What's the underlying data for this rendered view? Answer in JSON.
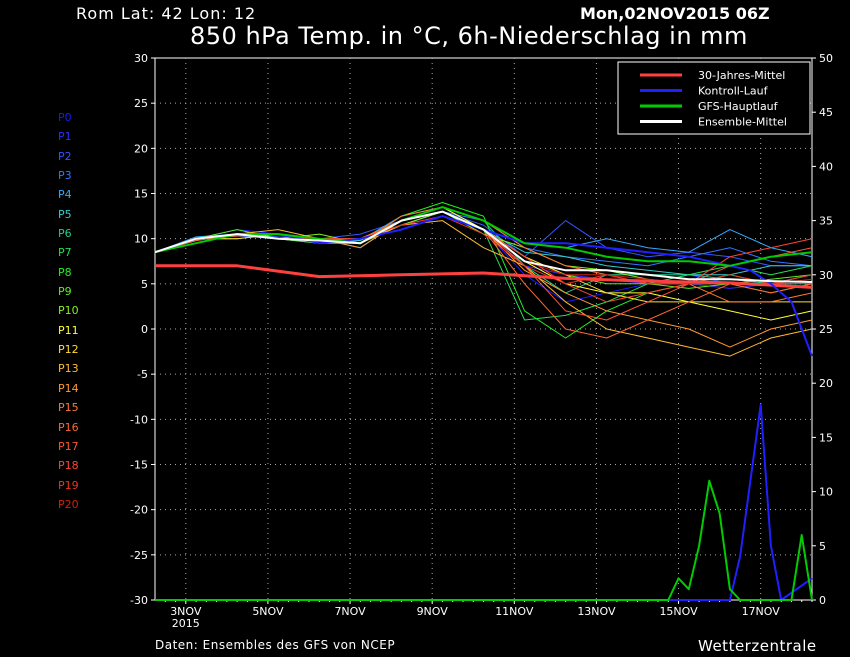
{
  "header": {
    "location": "Rom   Lat: 42 Lon: 12",
    "datetime": "Mon,02NOV2015 06Z",
    "title": "850 hPa Temp. in °C, 6h-Niederschlag in mm"
  },
  "footer": {
    "source": "Daten: Ensembles des GFS von NCEP",
    "brand": "Wetterzentrale"
  },
  "colors": {
    "background": "#000000",
    "climate": "#ff4040",
    "control": "#2020ff",
    "main": "#00cc00",
    "ensemble_mean": "#ffffff"
  },
  "members": [
    {
      "label": "P0",
      "color": "#1a1aff"
    },
    {
      "label": "P1",
      "color": "#2e2eff"
    },
    {
      "label": "P2",
      "color": "#3355ff"
    },
    {
      "label": "P3",
      "color": "#3377ff"
    },
    {
      "label": "P4",
      "color": "#33aaff"
    },
    {
      "label": "P5",
      "color": "#33cccc"
    },
    {
      "label": "P6",
      "color": "#22cc88"
    },
    {
      "label": "P7",
      "color": "#22dd55"
    },
    {
      "label": "P8",
      "color": "#22ee22"
    },
    {
      "label": "P9",
      "color": "#55ee22"
    },
    {
      "label": "P10",
      "color": "#88ee22"
    },
    {
      "label": "P11",
      "color": "#ffff33"
    },
    {
      "label": "P12",
      "color": "#ffdd33"
    },
    {
      "label": "P13",
      "color": "#ffbb33"
    },
    {
      "label": "P14",
      "color": "#ff9933"
    },
    {
      "label": "P15",
      "color": "#ff7733"
    },
    {
      "label": "P16",
      "color": "#ff6633"
    },
    {
      "label": "P17",
      "color": "#ff5533"
    },
    {
      "label": "P18",
      "color": "#ff4433"
    },
    {
      "label": "P19",
      "color": "#ee3322"
    },
    {
      "label": "P20",
      "color": "#cc2211"
    }
  ],
  "chart_data": {
    "type": "line",
    "title": "850 hPa Temp. in °C, 6h-Niederschlag in mm",
    "x_unit": "days since 2015-11-02 06Z",
    "xlim": [
      0,
      16
    ],
    "x_ticks": [
      {
        "x": 0.75,
        "label": "3NOV",
        "sub": "2015"
      },
      {
        "x": 2.75,
        "label": "5NOV"
      },
      {
        "x": 4.75,
        "label": "7NOV"
      },
      {
        "x": 6.75,
        "label": "9NOV"
      },
      {
        "x": 8.75,
        "label": "11NOV"
      },
      {
        "x": 10.75,
        "label": "13NOV"
      },
      {
        "x": 12.75,
        "label": "15NOV"
      },
      {
        "x": 14.75,
        "label": "17NOV"
      }
    ],
    "ylim_left": [
      -30,
      30
    ],
    "yticks_left": [
      30,
      25,
      20,
      15,
      10,
      5,
      0,
      -5,
      -10,
      -15,
      -20,
      -25,
      -30
    ],
    "ylim_right": [
      0,
      50
    ],
    "yticks_right": [
      50,
      45,
      40,
      35,
      30,
      25,
      20,
      15,
      10,
      5,
      0
    ],
    "grid": true,
    "legend_position": "top-right",
    "legend": [
      {
        "name": "30-Jahres-Mittel",
        "color": "#ff4040"
      },
      {
        "name": "Kontroll-Lauf",
        "color": "#2020ff"
      },
      {
        "name": "GFS-Hauptlauf",
        "color": "#00cc00"
      },
      {
        "name": "Ensemble-Mittel",
        "color": "#ffffff"
      }
    ],
    "series": [
      {
        "name": "30-Jahres-Mittel",
        "axis": "left",
        "color": "#ff4040",
        "x": [
          0,
          2,
          4,
          6,
          8,
          10,
          12,
          14,
          16
        ],
        "values": [
          7,
          7,
          5.8,
          6,
          6.2,
          5.6,
          5.3,
          5.1,
          4.6
        ]
      },
      {
        "name": "Kontroll-Lauf",
        "axis": "left",
        "color": "#2020ff",
        "x": [
          0,
          1,
          2,
          3,
          4,
          5,
          6,
          7,
          8,
          9,
          10,
          11,
          12,
          13,
          14,
          14.5,
          15,
          15.5,
          16
        ],
        "values": [
          8.5,
          10,
          10.5,
          10.5,
          9.5,
          10,
          11,
          12.5,
          11,
          9.5,
          9.5,
          9,
          8.5,
          8,
          7,
          6.5,
          5,
          3,
          -3
        ]
      },
      {
        "name": "GFS-Hauptlauf",
        "axis": "left",
        "color": "#00cc00",
        "x": [
          0,
          1,
          2,
          3,
          4,
          5,
          6,
          7,
          8,
          9,
          10,
          11,
          12,
          13,
          14,
          15,
          16
        ],
        "values": [
          8.5,
          9.5,
          10.5,
          10.5,
          10,
          9.5,
          12,
          13.5,
          12,
          9.5,
          9,
          8,
          7.5,
          7.5,
          7,
          8,
          8.5
        ]
      },
      {
        "name": "Ensemble-Mittel",
        "axis": "left",
        "color": "#ffffff",
        "x": [
          0,
          1,
          2,
          3,
          4,
          5,
          6,
          7,
          8,
          9,
          10,
          11,
          12,
          13,
          14,
          15,
          16
        ],
        "values": [
          8.5,
          10,
          10.5,
          10,
          9.8,
          9.5,
          12,
          13,
          11,
          7.5,
          6.5,
          6.5,
          6,
          5.5,
          5.5,
          5.3,
          5.2
        ]
      },
      {
        "name": "Kontroll-Lauf",
        "axis": "right",
        "color": "#2020ff",
        "x": [
          0,
          14,
          14.25,
          14.5,
          14.75,
          15,
          15.25,
          16
        ],
        "values": [
          0,
          0,
          4,
          11,
          18,
          5,
          0,
          2
        ]
      },
      {
        "name": "GFS-Hauptlauf",
        "axis": "right",
        "color": "#00cc00",
        "x": [
          0,
          12.5,
          12.75,
          13,
          13.25,
          13.5,
          13.75,
          14,
          14.25,
          15.5,
          15.75,
          16
        ],
        "values": [
          0,
          0,
          2,
          1,
          5,
          11,
          8,
          1,
          0,
          0,
          6,
          0
        ]
      }
    ],
    "member_lines": [
      [
        8.5,
        10,
        11,
        10.5,
        10,
        9,
        12,
        13,
        11,
        6,
        3,
        4,
        5,
        6,
        5,
        5,
        6
      ],
      [
        8.5,
        10,
        10.5,
        10,
        9.5,
        10,
        11.5,
        12.5,
        11,
        7,
        6,
        5.5,
        5,
        5,
        4.5,
        5,
        6
      ],
      [
        8.5,
        9.8,
        10.5,
        10.2,
        10,
        10.5,
        12,
        13,
        11.5,
        8,
        12,
        9,
        8,
        8.5,
        8,
        7,
        7
      ],
      [
        8.5,
        10,
        10.3,
        10,
        9.8,
        9.5,
        11.5,
        13,
        12,
        9,
        8,
        7.5,
        7,
        8,
        9,
        7.5,
        7
      ],
      [
        8.5,
        10.2,
        10.5,
        10.5,
        10,
        9.8,
        12.5,
        13.5,
        11,
        9.5,
        9,
        10,
        9,
        8.5,
        11,
        9,
        8
      ],
      [
        8.5,
        10,
        10.5,
        10,
        9.5,
        9.8,
        12,
        13,
        11,
        8.5,
        8,
        7,
        6.5,
        6,
        6,
        7,
        7
      ],
      [
        8.5,
        9.5,
        10.5,
        10.5,
        10,
        9,
        12,
        13.5,
        12,
        7,
        4,
        6,
        6,
        6,
        5.5,
        5,
        5
      ],
      [
        8.5,
        10,
        10,
        10.5,
        10,
        10,
        11.5,
        13,
        11,
        1,
        1.5,
        3,
        5,
        6,
        7,
        6,
        7
      ],
      [
        8.5,
        10,
        10.5,
        10.5,
        9.5,
        9.5,
        12.5,
        14,
        12.5,
        2,
        -1,
        2,
        4,
        5,
        6,
        5,
        6
      ],
      [
        8.5,
        10,
        11,
        10,
        9.5,
        10,
        12,
        13,
        11,
        8,
        6,
        5,
        5,
        4.5,
        5,
        5.5,
        6
      ],
      [
        8.5,
        9.8,
        10.5,
        10,
        10.5,
        9.5,
        11.5,
        13,
        10.5,
        9,
        7,
        6.5,
        5.5,
        5,
        5,
        4,
        5
      ],
      [
        8.5,
        10,
        10.5,
        10.5,
        10,
        9.5,
        12,
        13.5,
        11,
        7.5,
        5,
        4,
        4,
        3,
        2,
        1,
        2
      ],
      [
        8.5,
        10,
        10,
        10.5,
        10,
        10,
        12,
        13,
        11,
        8,
        6,
        4,
        3,
        3,
        3,
        3,
        3
      ],
      [
        8.5,
        10,
        10.5,
        11,
        10,
        9.5,
        11.5,
        12,
        9,
        7,
        3,
        0,
        -1,
        -2,
        -3,
        -1,
        0
      ],
      [
        8.5,
        10,
        10.5,
        10.5,
        10,
        9,
        12,
        13,
        11,
        6.5,
        4,
        2,
        1,
        0,
        -2,
        0,
        1
      ],
      [
        8.5,
        10,
        10.5,
        10,
        10,
        9.5,
        12.5,
        13.5,
        12,
        9,
        7,
        6,
        5,
        5,
        3,
        3,
        4
      ],
      [
        8.5,
        9.8,
        10.5,
        10.5,
        10,
        10,
        12,
        13,
        11,
        5,
        0,
        -1,
        1,
        3,
        5,
        4,
        5
      ],
      [
        8.5,
        10,
        10.3,
        10.5,
        10,
        9.5,
        12,
        13,
        11,
        7,
        2,
        1,
        3,
        5,
        7,
        8,
        9
      ],
      [
        8.5,
        10,
        10.5,
        10,
        10,
        9.5,
        12,
        13,
        11,
        8,
        5,
        3,
        4,
        5,
        8,
        9,
        10
      ],
      [
        8.5,
        10,
        10.5,
        10.5,
        10,
        10,
        11.5,
        12.5,
        10.5,
        7,
        5,
        6,
        5,
        5,
        6,
        5,
        6
      ],
      [
        8.5,
        10,
        10.5,
        10,
        10,
        9.5,
        12,
        13,
        11,
        7.5,
        6,
        6,
        5.5,
        5,
        5,
        5,
        5.5
      ]
    ]
  }
}
